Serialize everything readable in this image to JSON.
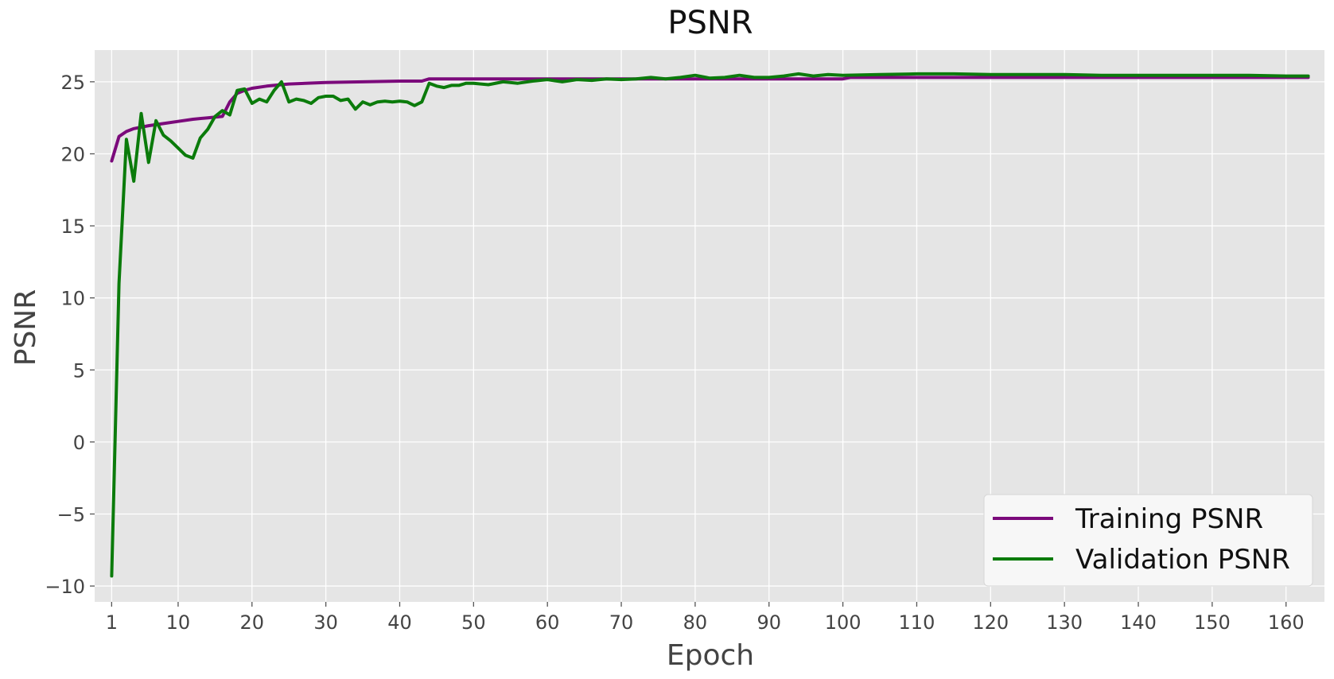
{
  "chart_data": {
    "type": "line",
    "title": "PSNR",
    "xlabel": "Epoch",
    "ylabel": "PSNR",
    "xlim": [
      -1.3,
      165.2
    ],
    "ylim": [
      -11.1,
      27.2
    ],
    "x_ticks": [
      1,
      10,
      20,
      30,
      40,
      50,
      60,
      70,
      80,
      90,
      100,
      110,
      120,
      130,
      140,
      150,
      160
    ],
    "y_ticks": [
      -10,
      -5,
      0,
      5,
      10,
      15,
      20,
      25
    ],
    "y_tick_labels": [
      "−10",
      "−5",
      "0",
      "5",
      "10",
      "15",
      "20",
      "25"
    ],
    "grid": true,
    "legend_position": "bottom-right",
    "series": [
      {
        "name": "Training PSNR",
        "color": "#7b0a7b",
        "x": [
          1,
          2,
          3,
          4,
          5,
          6,
          8,
          10,
          12,
          14,
          16,
          17,
          18,
          19,
          20,
          22,
          25,
          30,
          35,
          40,
          43,
          44,
          50,
          60,
          70,
          80,
          90,
          100,
          101,
          110,
          120,
          130,
          140,
          150,
          160,
          163
        ],
        "y": [
          19.5,
          21.2,
          21.55,
          21.75,
          21.85,
          21.95,
          22.1,
          22.25,
          22.4,
          22.5,
          22.6,
          23.6,
          24.2,
          24.4,
          24.55,
          24.7,
          24.85,
          24.95,
          25.0,
          25.05,
          25.05,
          25.2,
          25.2,
          25.2,
          25.2,
          25.2,
          25.2,
          25.2,
          25.3,
          25.3,
          25.3,
          25.3,
          25.3,
          25.3,
          25.3,
          25.3
        ]
      },
      {
        "name": "Validation PSNR",
        "color": "#0b7b0b",
        "x": [
          1,
          2,
          3,
          4,
          5,
          6,
          7,
          8,
          9,
          10,
          11,
          12,
          13,
          14,
          15,
          16,
          17,
          18,
          19,
          20,
          21,
          22,
          23,
          24,
          25,
          26,
          27,
          28,
          29,
          30,
          31,
          32,
          33,
          34,
          35,
          36,
          37,
          38,
          39,
          40,
          41,
          42,
          43,
          44,
          45,
          46,
          47,
          48,
          49,
          50,
          52,
          54,
          56,
          58,
          60,
          62,
          64,
          66,
          68,
          70,
          72,
          74,
          76,
          78,
          80,
          82,
          84,
          86,
          88,
          90,
          92,
          94,
          96,
          98,
          100,
          105,
          110,
          115,
          120,
          125,
          130,
          135,
          140,
          145,
          150,
          155,
          160,
          163
        ],
        "y": [
          -9.3,
          11.0,
          21.0,
          18.1,
          22.8,
          19.4,
          22.3,
          21.3,
          20.9,
          20.4,
          19.9,
          19.7,
          21.1,
          21.7,
          22.6,
          23.0,
          22.7,
          24.4,
          24.5,
          23.5,
          23.8,
          23.6,
          24.4,
          25.0,
          23.6,
          23.8,
          23.7,
          23.5,
          23.9,
          24.0,
          24.0,
          23.7,
          23.8,
          23.1,
          23.6,
          23.4,
          23.6,
          23.65,
          23.6,
          23.65,
          23.6,
          23.35,
          23.6,
          24.9,
          24.7,
          24.6,
          24.75,
          24.75,
          24.9,
          24.9,
          24.8,
          25.0,
          24.9,
          25.05,
          25.15,
          25.0,
          25.15,
          25.1,
          25.2,
          25.15,
          25.2,
          25.3,
          25.2,
          25.3,
          25.45,
          25.25,
          25.3,
          25.45,
          25.3,
          25.3,
          25.4,
          25.55,
          25.4,
          25.5,
          25.45,
          25.5,
          25.55,
          25.55,
          25.5,
          25.5,
          25.5,
          25.45,
          25.45,
          25.45,
          25.45,
          25.45,
          25.4,
          25.4
        ]
      }
    ]
  }
}
